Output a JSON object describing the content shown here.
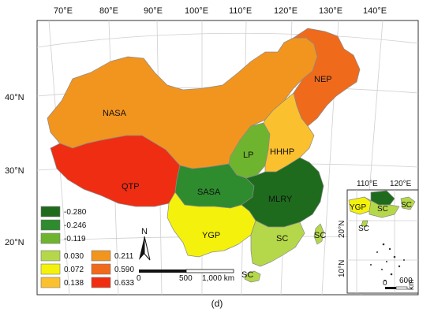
{
  "top_axis": [
    "70°E",
    "80°E",
    "90°E",
    "100°E",
    "110°E",
    "120°E",
    "130°E",
    "140°E"
  ],
  "left_axis": [
    "40°N",
    "30°N",
    "20°N"
  ],
  "regions": [
    {
      "code": "NASA",
      "value": 0.211,
      "color": "#f2951e"
    },
    {
      "code": "NEP",
      "value": 0.59,
      "color": "#f06a1c"
    },
    {
      "code": "QTP",
      "value": 0.633,
      "color": "#ef2d12"
    },
    {
      "code": "LP",
      "value": -0.119,
      "color": "#6fb42e"
    },
    {
      "code": "HHHP",
      "value": 0.138,
      "color": "#fbc02d"
    },
    {
      "code": "SASA",
      "value": -0.246,
      "color": "#2e8b2e"
    },
    {
      "code": "MLRY",
      "value": -0.28,
      "color": "#1e6b1e"
    },
    {
      "code": "YGP",
      "value": 0.072,
      "color": "#f4f20c"
    },
    {
      "code": "SC",
      "value": 0.03,
      "color": "#b5d84a"
    }
  ],
  "legend": [
    {
      "label": "-0.280",
      "color": "#1e6b1e"
    },
    {
      "label": "-0.246",
      "color": "#2e8b2e"
    },
    {
      "label": "-0.119",
      "color": "#6fb42e"
    },
    {
      "label": "0.030",
      "color": "#b5d84a"
    },
    {
      "label": "0.072",
      "color": "#f4f20c"
    },
    {
      "label": "0.138",
      "color": "#fbc02d"
    },
    {
      "label": "0.211",
      "color": "#f2951e"
    },
    {
      "label": "0.590",
      "color": "#f06a1c"
    },
    {
      "label": "0.633",
      "color": "#ef2d12"
    }
  ],
  "north_arrow": "N",
  "scale_bar": {
    "ticks": [
      "0",
      "500",
      "1,000 km"
    ]
  },
  "inset": {
    "top_axis": [
      "110°E",
      "120°E"
    ],
    "left_axis": [
      "20°N",
      "10°N"
    ],
    "labels": [
      "YGP",
      "SC",
      "SC",
      "SC"
    ],
    "scale_ticks": [
      "0",
      "600"
    ],
    "scale_unit": "km"
  },
  "caption": "(d)"
}
